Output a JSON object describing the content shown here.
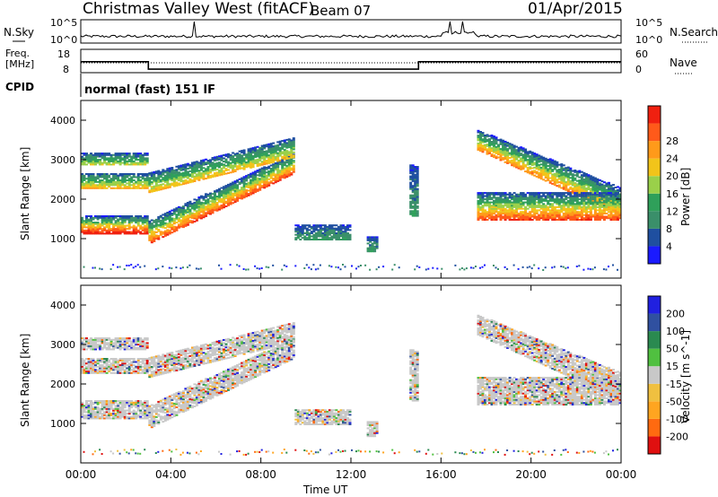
{
  "header": {
    "station": "Christmas Valley West (fitACF)",
    "beam": "Beam 07",
    "date": "01/Apr/2015"
  },
  "noise_panel": {
    "left_label": "N.Sky",
    "right_label": "N.Search",
    "left_ticks": [
      "10^5",
      "10^0"
    ],
    "right_ticks": [
      "10^5",
      "10^0"
    ]
  },
  "freq_panel": {
    "left_label_1": "Freq.",
    "left_label_2": "[MHz]",
    "right_label": "Nave",
    "left_ticks": [
      "18",
      "8"
    ],
    "right_ticks": [
      "60",
      "0"
    ],
    "freq_mhz_segments": [
      {
        "start_hr": 0.0,
        "end_hr": 3.0,
        "freq": 15.2
      },
      {
        "start_hr": 3.0,
        "end_hr": 15.0,
        "freq": 10.3
      },
      {
        "start_hr": 15.0,
        "end_hr": 24.0,
        "freq": 15.2
      }
    ]
  },
  "cpid": {
    "label": "CPID",
    "mode": "normal (fast) 151 IF"
  },
  "colors": {
    "power": [
      "#1a1aff",
      "#1f4fa0",
      "#3a8f6a",
      "#2fa05a",
      "#9ad04a",
      "#f2c41a",
      "#ff9a1a",
      "#ff5a1a",
      "#f02010"
    ],
    "velocity": [
      "#e01010",
      "#ff6a10",
      "#ffa520",
      "#f0c040",
      "#c8c8c8",
      "#50c040",
      "#2a8a50",
      "#3050a0",
      "#2020e0"
    ]
  },
  "chart_data": [
    {
      "type": "heatmap",
      "name": "Power",
      "ylabel": "Slant Range [km]",
      "yticks": [
        "1000",
        "2000",
        "3000",
        "4000"
      ],
      "ylim": [
        0,
        4500
      ],
      "xlim": [
        0,
        24
      ],
      "colorbar_label": "Power [dB]",
      "colorbar_ticks": [
        "4",
        "8",
        "12",
        "16",
        "20",
        "24",
        "28"
      ],
      "colorbar_range": [
        0,
        32
      ]
    },
    {
      "type": "heatmap",
      "name": "Velocity",
      "ylabel": "Slant Range [km]",
      "yticks": [
        "1000",
        "2000",
        "3000",
        "4000"
      ],
      "ylim": [
        0,
        4500
      ],
      "xlim": [
        0,
        24
      ],
      "colorbar_label": "Velocity [m s^-1]",
      "colorbar_ticks": [
        "200",
        "100",
        "50",
        "15",
        "-15",
        "-50",
        "-100",
        "-200"
      ]
    }
  ],
  "xaxis": {
    "ticks": [
      "00:00",
      "04:00",
      "08:00",
      "12:00",
      "16:00",
      "20:00",
      "00:00"
    ],
    "tick_hours": [
      0,
      4,
      8,
      12,
      16,
      20,
      24
    ],
    "label": "Time UT"
  }
}
